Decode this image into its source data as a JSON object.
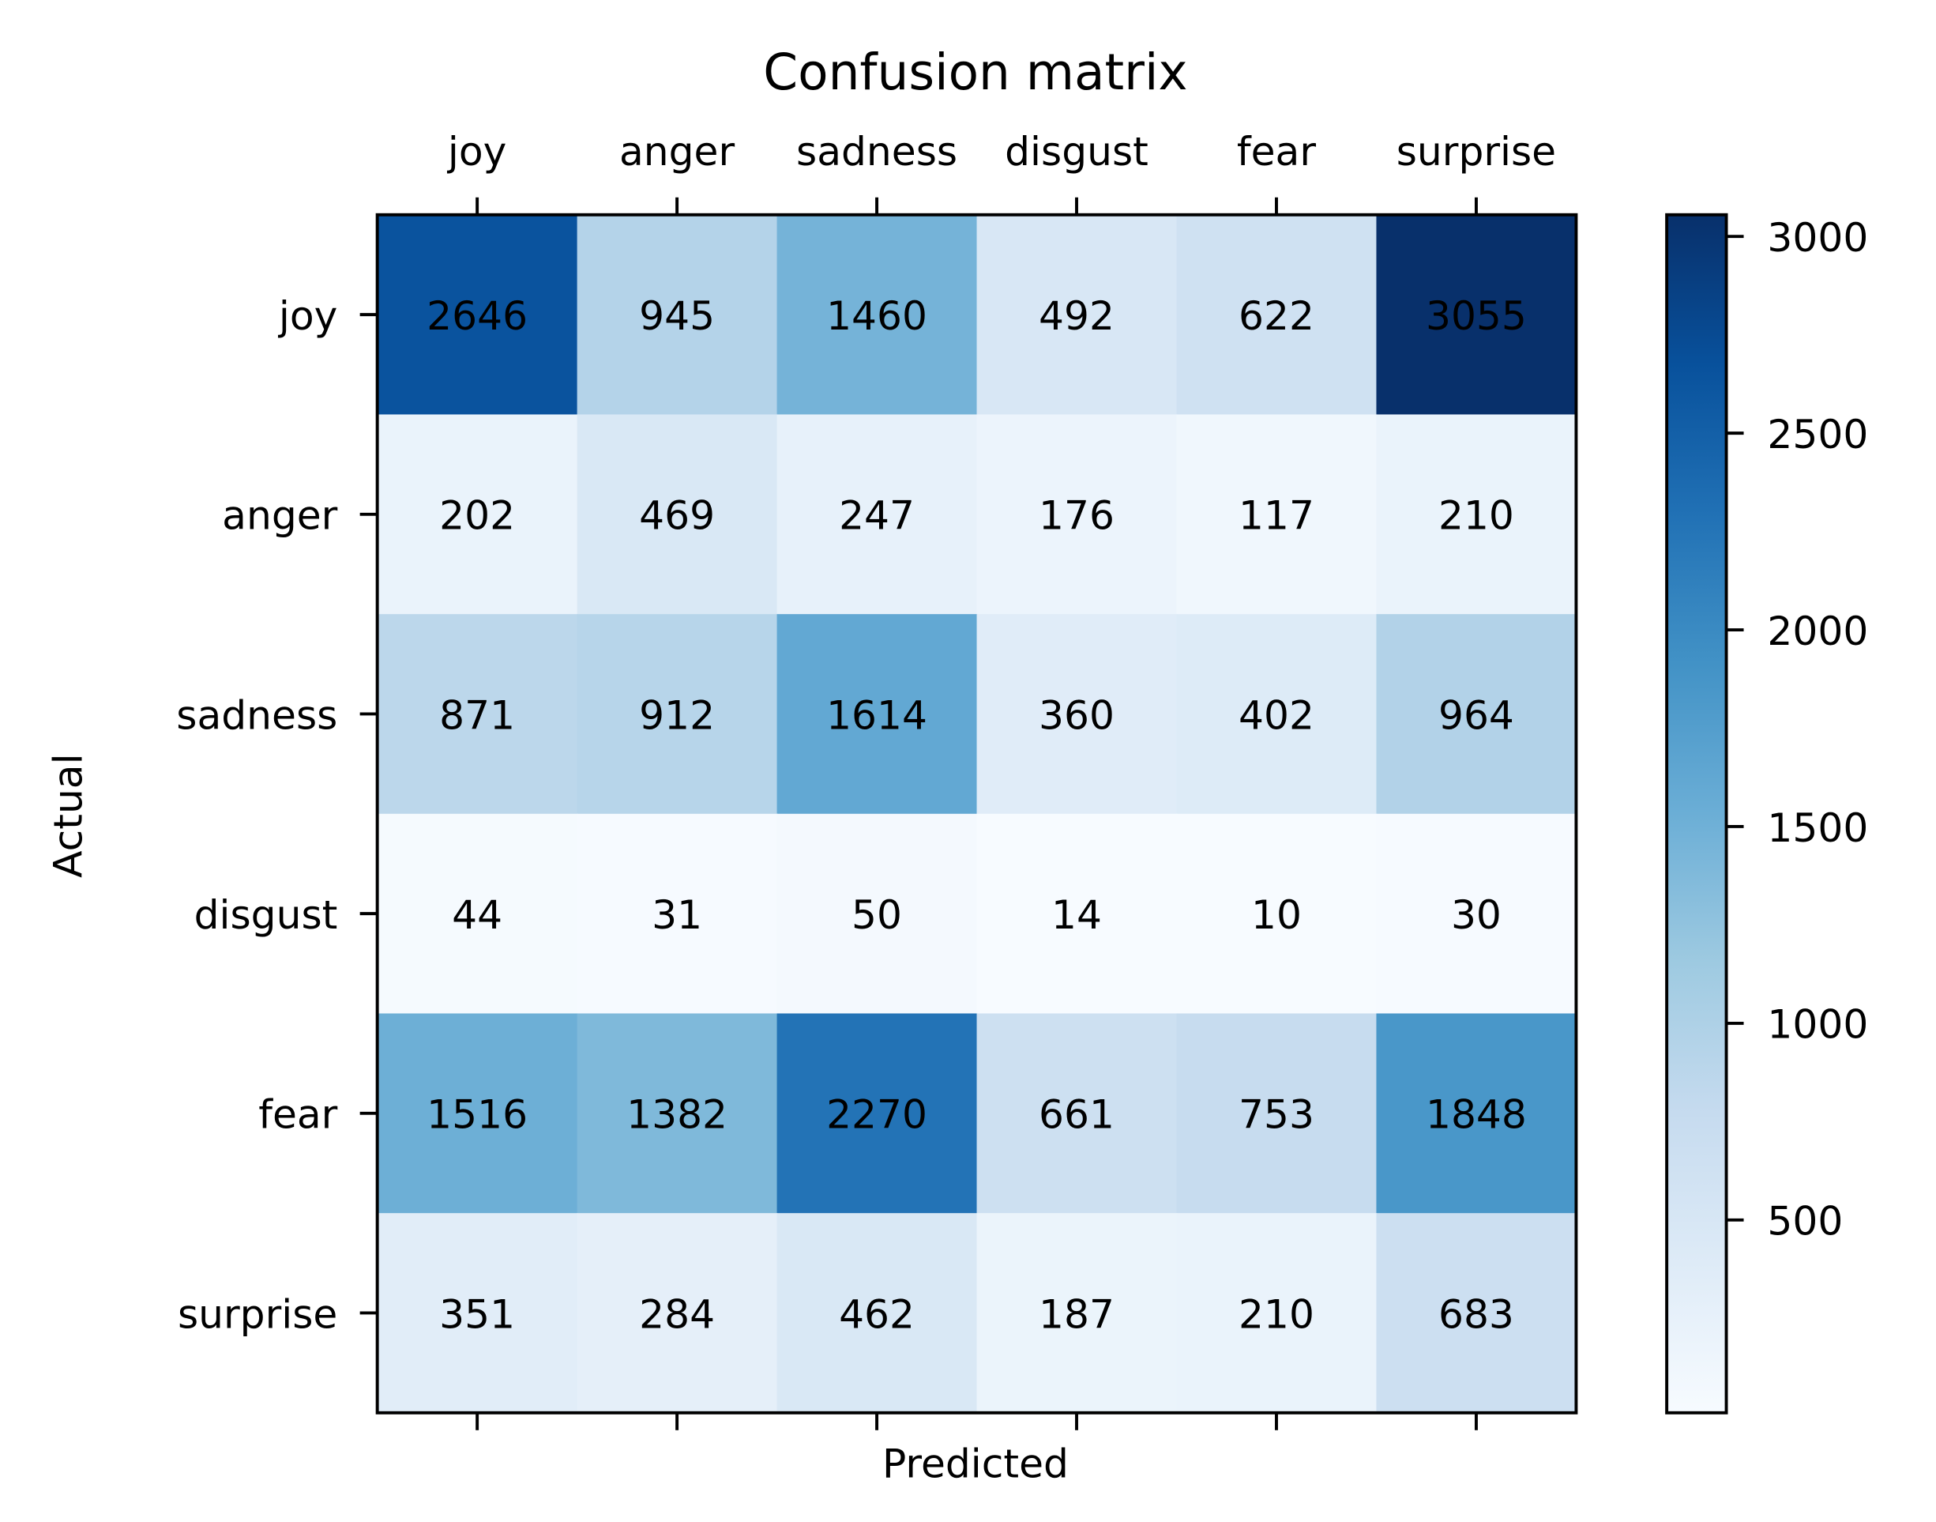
{
  "chart_data": {
    "type": "heatmap",
    "title": "Confusion matrix",
    "xlabel": "Predicted",
    "ylabel": "Actual",
    "x_categories": [
      "joy",
      "anger",
      "sadness",
      "disgust",
      "fear",
      "surprise"
    ],
    "y_categories": [
      "joy",
      "anger",
      "sadness",
      "disgust",
      "fear",
      "surprise"
    ],
    "values": [
      [
        2646,
        945,
        1460,
        492,
        622,
        3055
      ],
      [
        202,
        469,
        247,
        176,
        117,
        210
      ],
      [
        871,
        912,
        1614,
        360,
        402,
        964
      ],
      [
        44,
        31,
        50,
        14,
        10,
        30
      ],
      [
        1516,
        1382,
        2270,
        661,
        753,
        1848
      ],
      [
        351,
        284,
        462,
        187,
        210,
        683
      ]
    ],
    "colormap": "Blues",
    "colorbar": {
      "range": [
        10,
        3055
      ],
      "ticks": [
        500,
        1000,
        1500,
        2000,
        2500,
        3000
      ],
      "tick_labels": [
        "500",
        "1000",
        "1500",
        "2000",
        "2500",
        "3000"
      ]
    },
    "x_tick_position": "top",
    "grid": false
  }
}
